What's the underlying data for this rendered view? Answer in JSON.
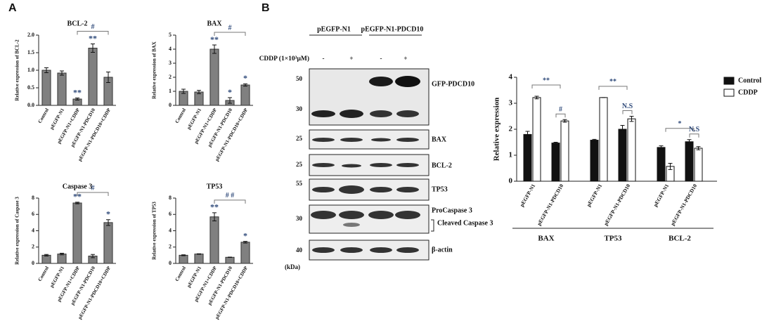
{
  "panel_labels": [
    "A",
    "B"
  ],
  "blot": {
    "groups": [
      "pEGFP-N1",
      "pEGFP-N1-PDCD10"
    ],
    "treatment": "CDDP (1×10³μM)",
    "signs": [
      "-",
      "+",
      "-",
      "+"
    ],
    "markers": [
      50,
      30,
      25,
      25,
      55,
      30,
      40
    ],
    "bands": [
      "GFP-PDCD10",
      "BAX",
      "BCL-2",
      "TP53",
      "ProCaspase 3",
      "Cleaved Caspase 3",
      "β-actin"
    ],
    "unit": "(kDa)"
  },
  "chart_data": [
    {
      "type": "bar",
      "title": "BCL-2",
      "y_label": "Relative expression of BCL-2",
      "color": "#808080",
      "categories": [
        "Control",
        "pEGFP-N1",
        "pEGFP-N1+CDDP",
        "pEGFP-N1-PDCD10",
        "pEGFP-N1-PDCD10+CDDP"
      ],
      "values": [
        1.0,
        0.92,
        0.18,
        1.63,
        0.8
      ],
      "errors": [
        0.07,
        0.06,
        0.03,
        0.12,
        0.15
      ],
      "ylim": [
        0,
        2
      ],
      "yticks": [
        {
          "value": 0,
          "label": "0.0"
        },
        {
          "value": 0.5,
          "label": "0.5"
        },
        {
          "value": 1,
          "label": "1.0"
        },
        {
          "value": 1.5,
          "label": "1.5"
        },
        {
          "value": 2,
          "label": "2.0"
        }
      ],
      "annotations": [
        {
          "text": "**",
          "index": 2
        },
        {
          "text": "**",
          "index": 3
        }
      ],
      "brackets": [
        {
          "text": "#",
          "from": 2,
          "to": 4
        }
      ]
    },
    {
      "type": "bar",
      "title": "BAX",
      "y_label": "Relative expression of BAX",
      "color": "#808080",
      "categories": [
        "Control",
        "pEGFP-N1",
        "pEGFP-N1+CDDP",
        "pEGFP-N1-PDCD10",
        "pEGFP-N1-PDCD10+CDDP"
      ],
      "values": [
        1.0,
        0.95,
        4.0,
        0.35,
        1.45
      ],
      "errors": [
        0.15,
        0.12,
        0.3,
        0.2,
        0.08
      ],
      "ylim": [
        0,
        5
      ],
      "yticks": [
        0,
        1,
        2,
        3,
        4,
        5
      ],
      "annotations": [
        {
          "text": "**",
          "index": 2
        },
        {
          "text": "*",
          "index": 3
        },
        {
          "text": "*",
          "index": 4
        }
      ],
      "brackets": [
        {
          "text": "#",
          "from": 2,
          "to": 4
        }
      ]
    },
    {
      "type": "bar",
      "title": "Caspase 3",
      "y_label": "Relative expression of Caspase 3",
      "color": "#808080",
      "categories": [
        "Control",
        "pEGFP-N1",
        "pEGFP-N1+CDDP",
        "pEGFP-N1-PDCD10",
        "pEGFP-N1-PDCD10+CDDP"
      ],
      "values": [
        1.0,
        1.15,
        7.4,
        0.9,
        5.0
      ],
      "errors": [
        0.1,
        0.1,
        0.1,
        0.2,
        0.35
      ],
      "ylim": [
        0,
        8
      ],
      "yticks": [
        0,
        2,
        4,
        6,
        8
      ],
      "annotations": [
        {
          "text": "**",
          "index": 2
        },
        {
          "text": "*",
          "index": 4
        }
      ],
      "brackets": [
        {
          "text": "#",
          "from": 2,
          "to": 4
        }
      ]
    },
    {
      "type": "bar",
      "title": "TP53",
      "y_label": "Relative expression of TP53",
      "color": "#808080",
      "categories": [
        "Control",
        "pEGFP-N1",
        "pEGFP-N1+CDDP",
        "pEGFP-N1-PDCD10",
        "pEGFP-N1-PDCD10+CDDP"
      ],
      "values": [
        1.0,
        1.15,
        5.7,
        0.75,
        2.6
      ],
      "errors": [
        0.05,
        0.03,
        0.5,
        0.02,
        0.1
      ],
      "ylim": [
        0,
        8
      ],
      "yticks": [
        0,
        2,
        4,
        6,
        8
      ],
      "annotations": [
        {
          "text": "**",
          "index": 2
        },
        {
          "text": "*",
          "index": 4
        }
      ],
      "brackets": [
        {
          "text": "# #",
          "from": 2,
          "to": 4
        }
      ]
    },
    {
      "type": "grouped_bar",
      "y_label": "Relative expression",
      "groups": [
        "BAX",
        "TP53",
        "BCL-2"
      ],
      "categories": [
        "pEGFP-N1",
        "pEGFP-N1-PDCD10",
        "pEGFP-N1",
        "pEGFP-N1-PDCD10",
        "pEGFP-N1",
        "pEGFP-N1-PDCD10"
      ],
      "series": [
        {
          "name": "Control",
          "color": "#111111",
          "values": [
            1.8,
            1.47,
            1.58,
            2.0,
            1.3,
            1.52
          ],
          "errors": [
            0.12,
            0.03,
            0.03,
            0.15,
            0.06,
            0.08
          ]
        },
        {
          "name": "CDDP",
          "color": "#ffffff",
          "values": [
            3.22,
            2.32,
            3.22,
            2.4,
            0.57,
            1.27
          ],
          "errors": [
            0.05,
            0.05,
            0.0,
            0.1,
            0.12,
            0.06
          ]
        }
      ],
      "ylim": [
        0,
        4
      ],
      "yticks": [
        0,
        1,
        2,
        3,
        4
      ],
      "brackets": [
        {
          "text": "**",
          "from": 0,
          "to": 1
        },
        {
          "text": "**",
          "from": 2,
          "to": 3
        },
        {
          "text": "*",
          "from": 4,
          "to": 5
        }
      ],
      "pairs": [
        {
          "text": "#",
          "index": 1
        },
        {
          "text": "N.S",
          "index": 3
        },
        {
          "text": "N.S",
          "index": 5
        }
      ]
    }
  ]
}
